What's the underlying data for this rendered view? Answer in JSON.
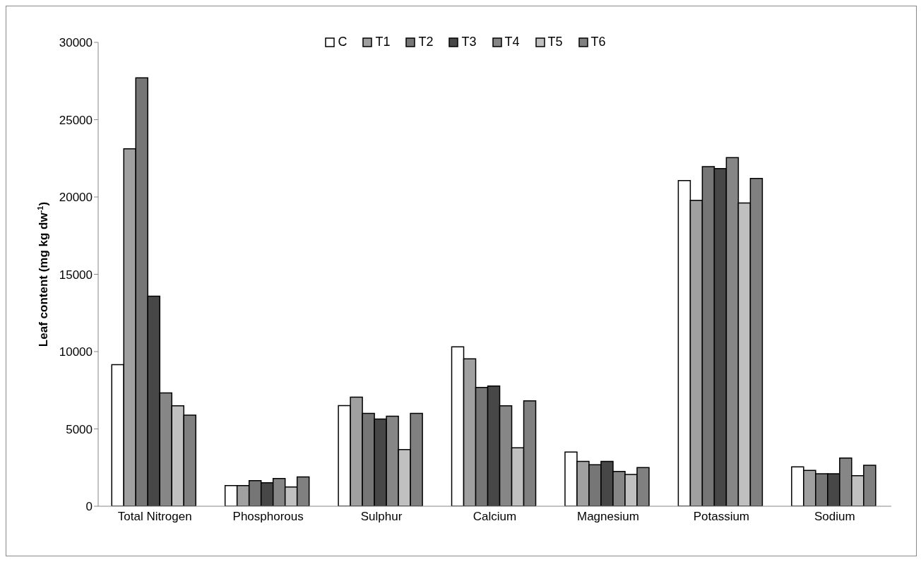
{
  "chart_data": {
    "type": "bar",
    "ylabel": "Leaf content (mg kg dw$^{-1}$)",
    "categories": [
      "Total Nitrogen",
      "Phosphorous",
      "Sulphur",
      "Calcium",
      "Magnesium",
      "Potassium",
      "Sodium"
    ],
    "series": [
      {
        "name": "C",
        "color": "#ffffff",
        "values": [
          9160,
          1340,
          6510,
          10310,
          3510,
          21060,
          2550
        ]
      },
      {
        "name": "T1",
        "color": "#a0a0a0",
        "values": [
          23120,
          1340,
          7060,
          9530,
          2900,
          19780,
          2320
        ]
      },
      {
        "name": "T2",
        "color": "#767676",
        "values": [
          27700,
          1650,
          6010,
          7680,
          2680,
          21960,
          2100
        ]
      },
      {
        "name": "T3",
        "color": "#474747",
        "values": [
          13590,
          1520,
          5640,
          7770,
          2900,
          21840,
          2100
        ]
      },
      {
        "name": "T4",
        "color": "#868686",
        "values": [
          7330,
          1790,
          5820,
          6500,
          2250,
          22550,
          3120
        ]
      },
      {
        "name": "T5",
        "color": "#c0c0c0",
        "values": [
          6500,
          1250,
          3660,
          3780,
          2050,
          19610,
          1980
        ]
      },
      {
        "name": "T6",
        "color": "#808080",
        "values": [
          5890,
          1900,
          6010,
          6810,
          2500,
          21200,
          2650
        ]
      }
    ],
    "ylim": [
      0,
      30000
    ],
    "yticks": [
      0,
      5000,
      10000,
      15000,
      20000,
      25000,
      30000
    ],
    "grid": false,
    "legend": "top"
  }
}
